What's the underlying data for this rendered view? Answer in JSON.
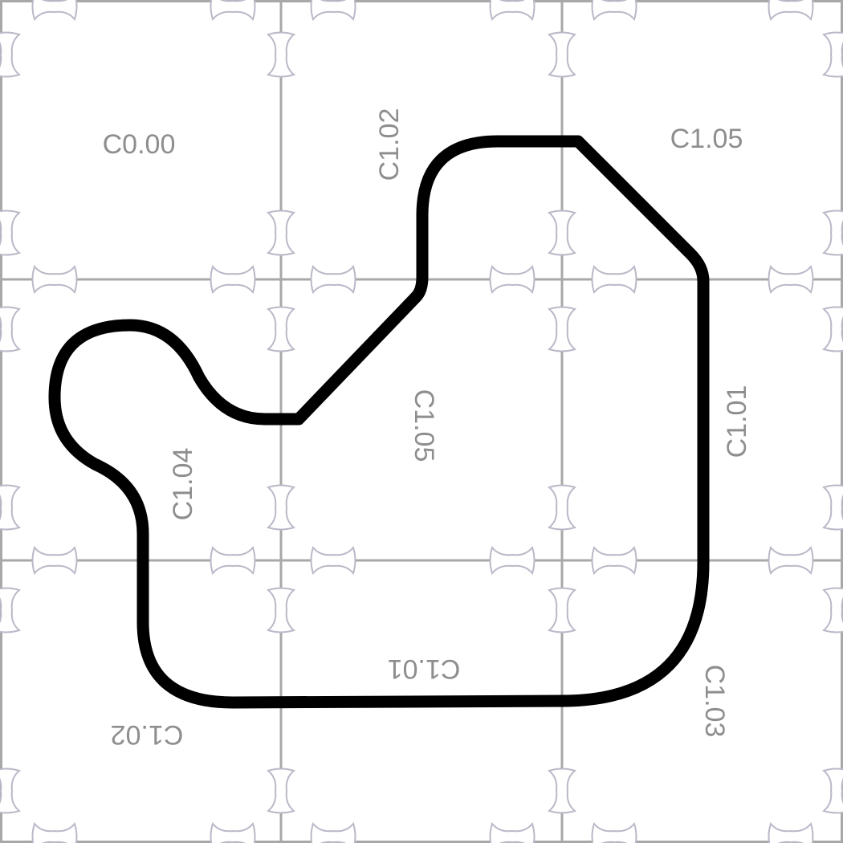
{
  "board": {
    "tiles": [
      {
        "id": "tile-r0c0",
        "label": "C0.00"
      },
      {
        "id": "tile-r0c1",
        "label": "C1.02"
      },
      {
        "id": "tile-r0c2",
        "label": "C1.05"
      },
      {
        "id": "tile-r1c0",
        "label": "C1.04"
      },
      {
        "id": "tile-r1c1",
        "label": "C1.05"
      },
      {
        "id": "tile-r1c2",
        "label": "C1.01"
      },
      {
        "id": "tile-r2c0",
        "label": "C1.02"
      },
      {
        "id": "tile-r2c1",
        "label": "C1.01"
      },
      {
        "id": "tile-r2c2",
        "label": "C1.03"
      }
    ]
  },
  "colors": {
    "track": "#000000",
    "grid": "#a8a8a8",
    "label": "#8e8e8e",
    "background": "#ffffff"
  }
}
